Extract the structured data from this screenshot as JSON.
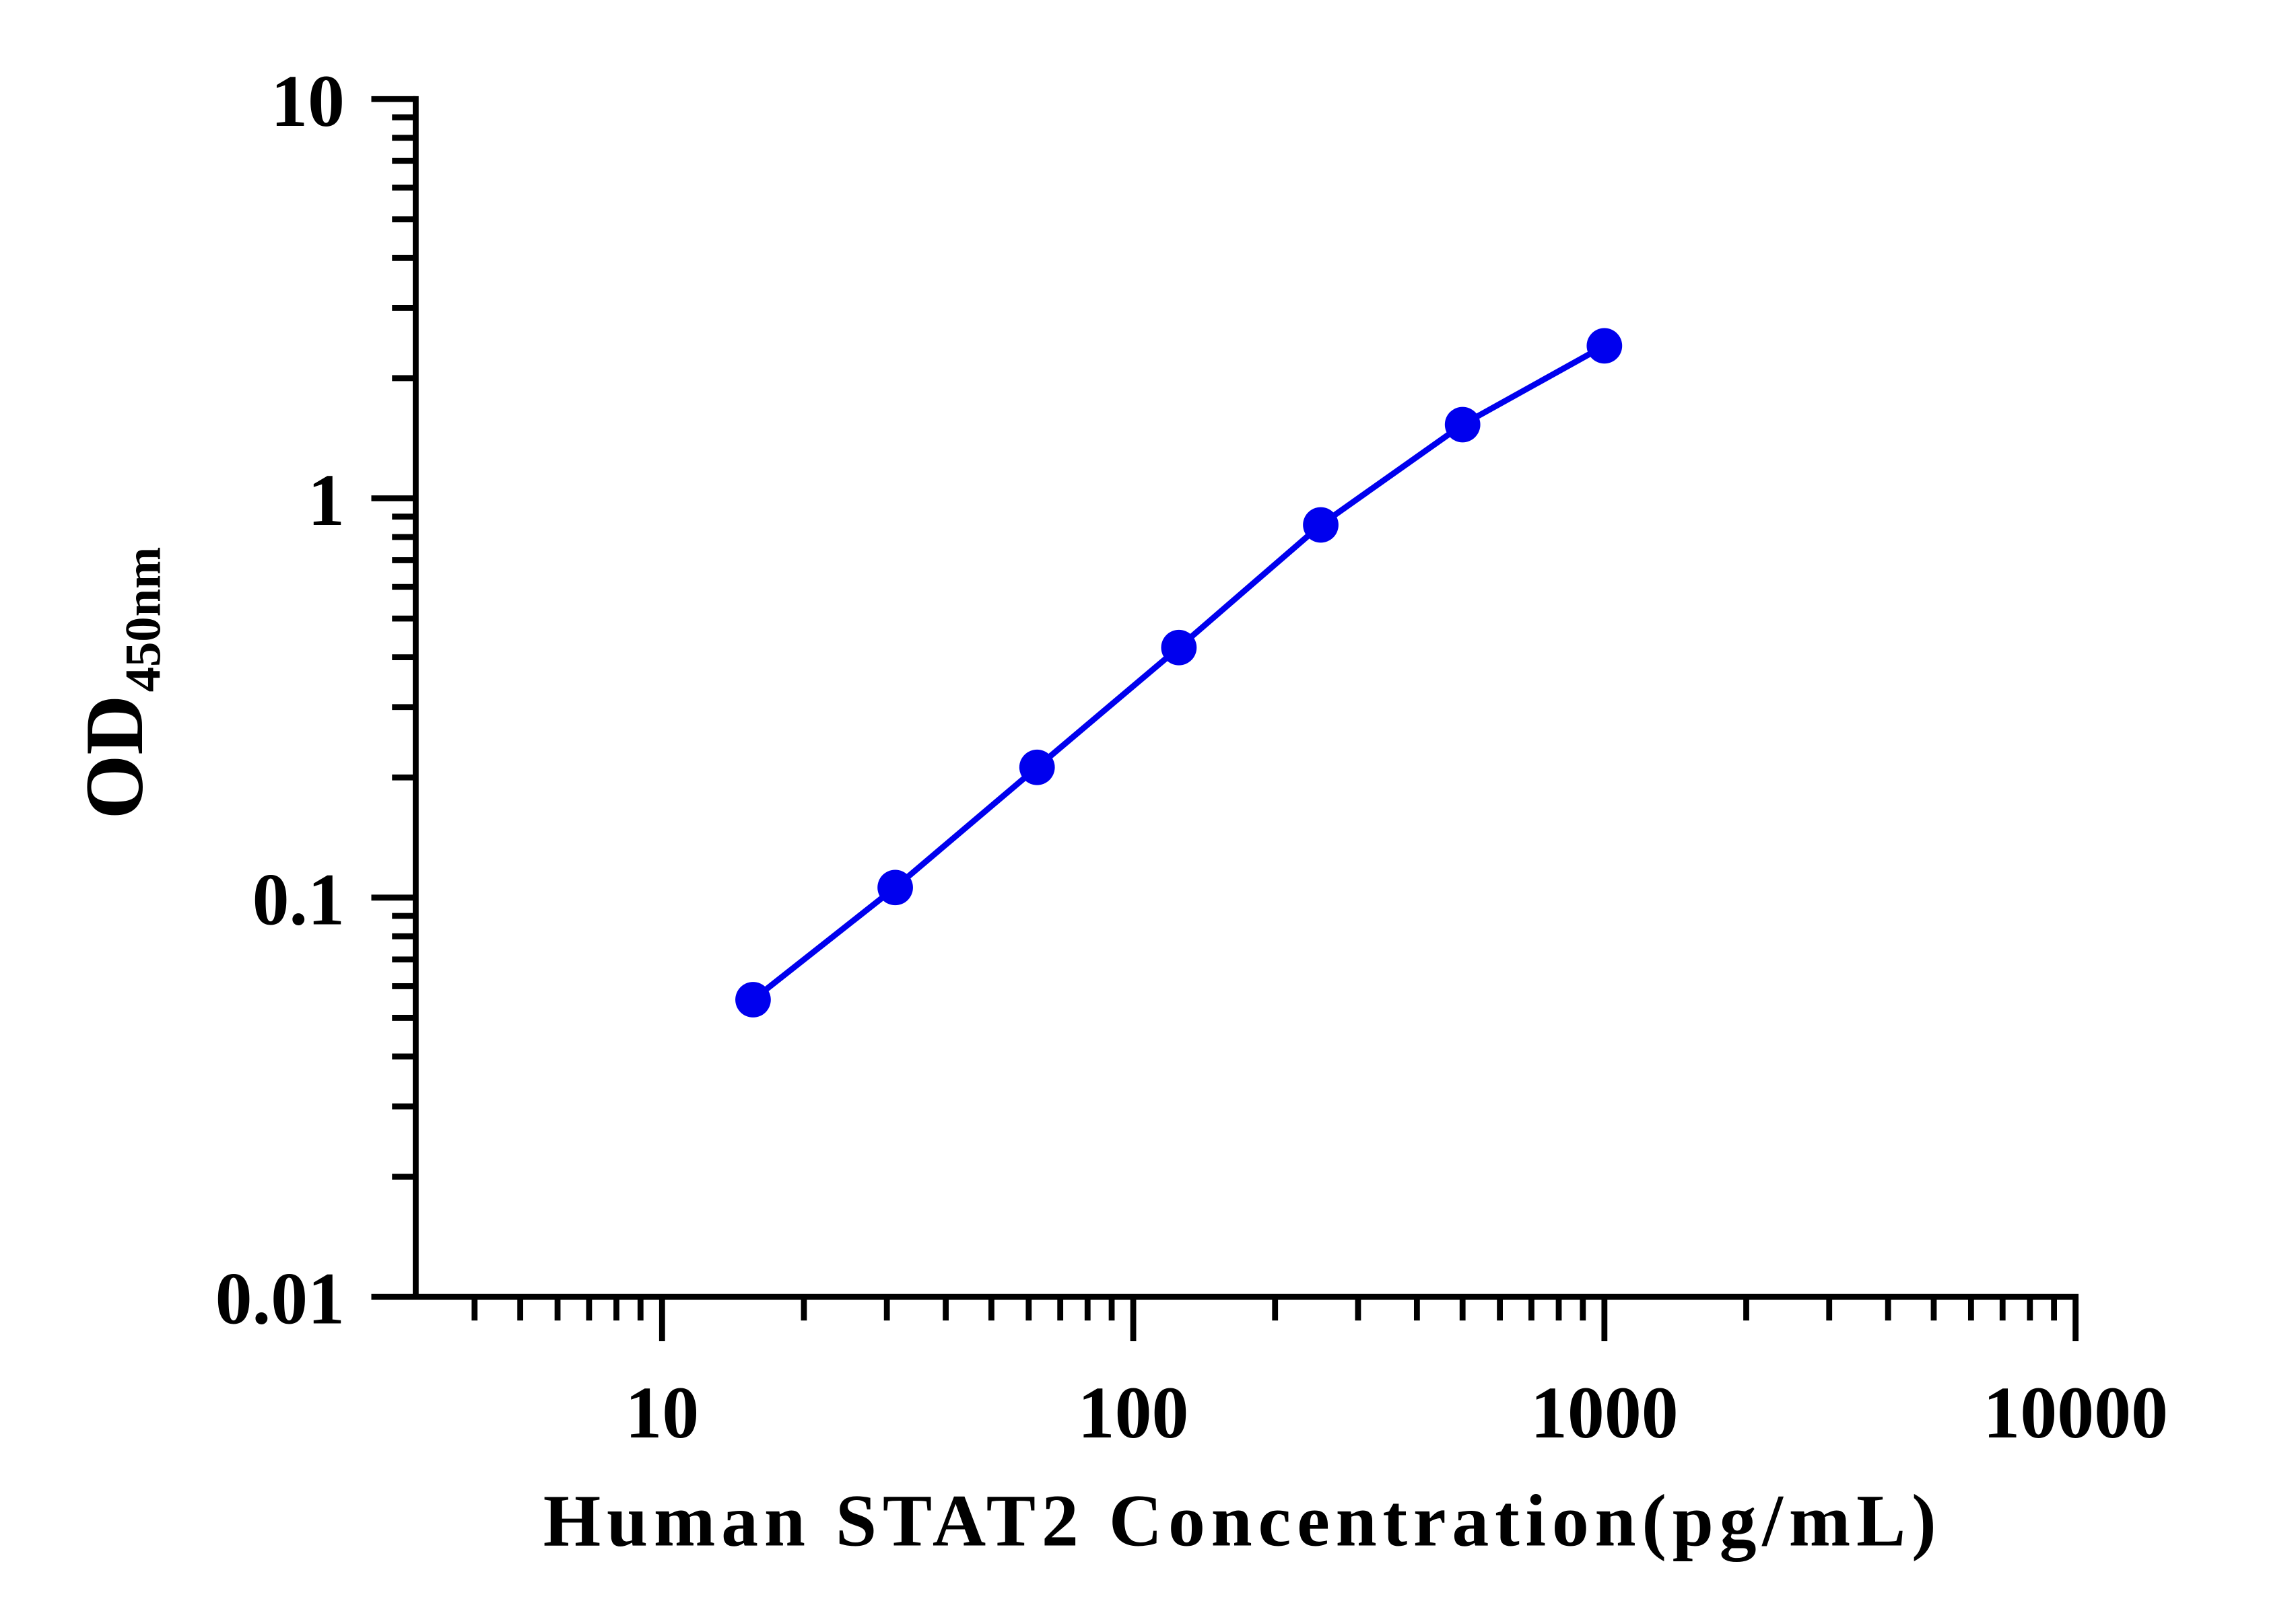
{
  "chart_data": {
    "type": "line",
    "x_label": "Human STAT2 Concentration(pg/mL)",
    "y_label": "OD",
    "y_label_subscript": "450nm",
    "x": [
      15.6,
      31.25,
      62.5,
      125,
      250,
      500,
      1000
    ],
    "series": [
      {
        "color": "#0000ee",
        "values": [
          0.0555,
          0.106,
          0.212,
          0.423,
          0.858,
          1.53,
          2.41
        ]
      }
    ],
    "x_log": true,
    "y_log": true,
    "xlim": [
      3,
      10000
    ],
    "ylim": [
      0.01,
      10
    ],
    "xticks": [
      10,
      100,
      1000,
      10000
    ],
    "yticks": [
      0.01,
      0.1,
      1,
      10
    ],
    "xminorticks": [
      4,
      5,
      6,
      7,
      8,
      9,
      20,
      30,
      40,
      50,
      60,
      70,
      80,
      90,
      200,
      300,
      400,
      500,
      600,
      700,
      800,
      900,
      2000,
      3000,
      4000,
      5000,
      6000,
      7000,
      8000,
      9000
    ],
    "yminorticks": [
      0.02,
      0.03,
      0.04,
      0.05,
      0.06,
      0.07,
      0.08,
      0.09,
      0.2,
      0.3,
      0.4,
      0.5,
      0.6,
      0.7,
      0.8,
      0.9,
      2,
      3,
      4,
      5,
      6,
      7,
      8,
      9
    ],
    "grid": false
  }
}
